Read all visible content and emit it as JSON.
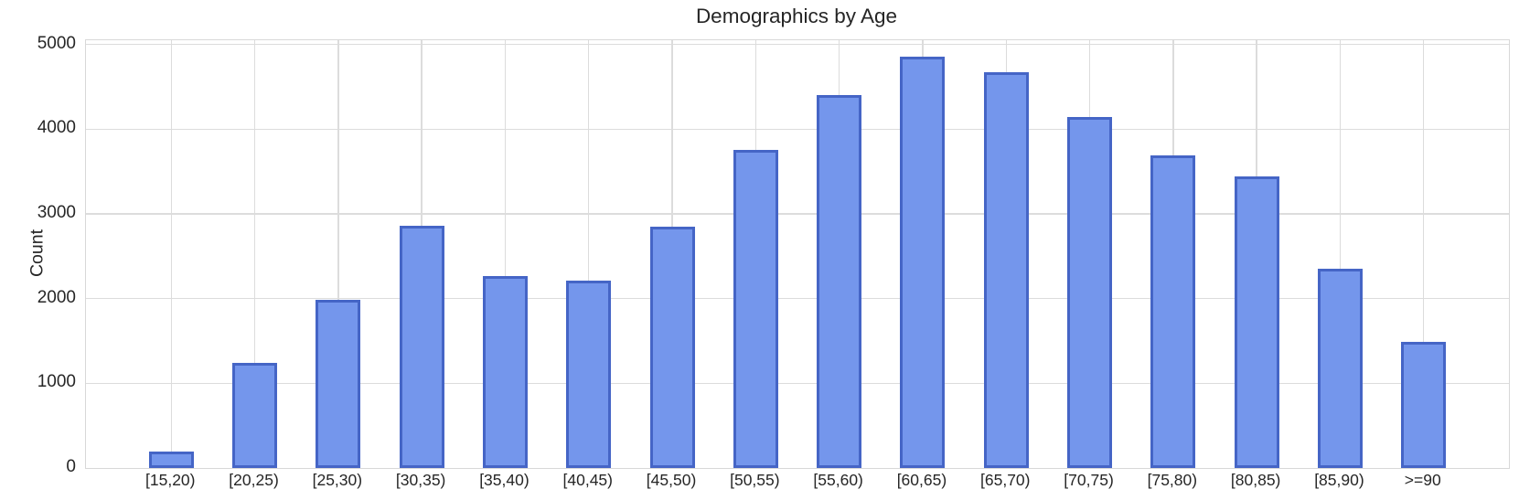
{
  "chart_data": {
    "type": "bar",
    "title": "Demographics by Age",
    "xlabel": "",
    "ylabel": "Count",
    "categories": [
      "[15,20)",
      "[20,25)",
      "[25,30)",
      "[30,35)",
      "[35,40)",
      "[40,45)",
      "[45,50)",
      "[50,55)",
      "[55,60)",
      "[60,65)",
      "[65,70)",
      "[70,75)",
      "[75,80)",
      "[80,85)",
      "[85,90)",
      ">=90"
    ],
    "values": [
      190,
      1240,
      1990,
      2860,
      2270,
      2215,
      2845,
      3760,
      4400,
      4855,
      4675,
      4140,
      3690,
      3440,
      2350,
      1490
    ],
    "yticks": [
      0,
      1000,
      2000,
      3000,
      4000,
      5000
    ],
    "ylim": [
      0,
      5050
    ],
    "grid": true,
    "legend": false,
    "colors": {
      "bar_fill": "#7496EC",
      "bar_edge": "#4565C6",
      "gridline": "#DCDCDC",
      "spine": "#D8D8D8",
      "text": "#262626",
      "background": "#FFFFFF"
    }
  }
}
